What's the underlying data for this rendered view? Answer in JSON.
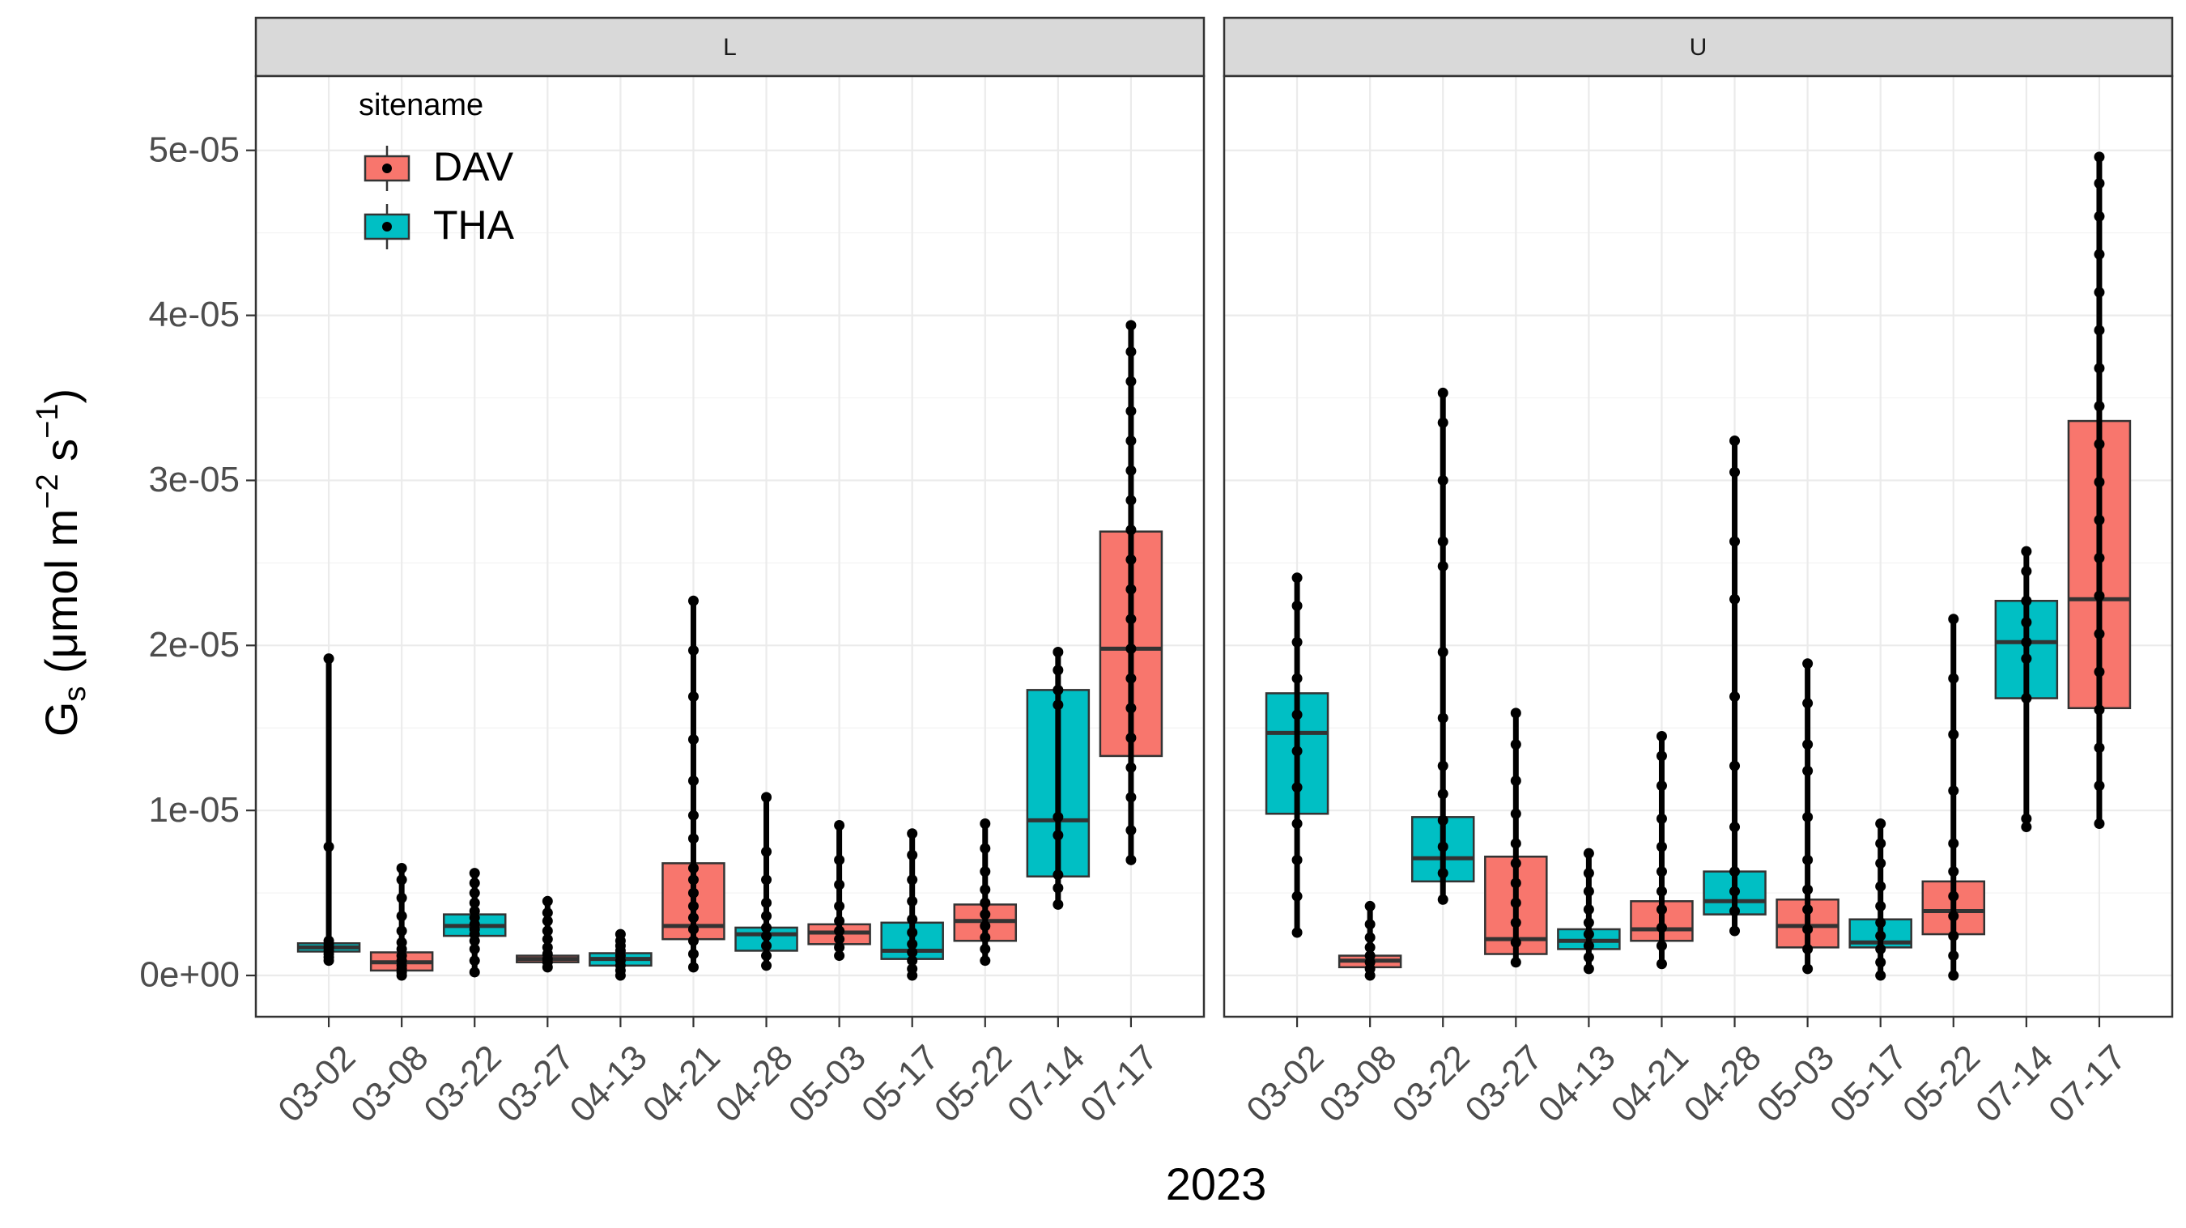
{
  "chart_data": {
    "type": "boxplot",
    "xlabel": "2023",
    "ylabel": "Gs (μmol m^-2 s^-1)",
    "ylabel_parts": {
      "main": "G",
      "sub": "s",
      "open": " (μmol m",
      "exp1": "−2",
      "mid": " s",
      "exp2": "−1",
      "close": ")"
    },
    "ylim": [
      -2.5e-06,
      5.45e-05
    ],
    "y_ticks": [
      0,
      1e-05,
      2e-05,
      3e-05,
      4e-05,
      5e-05
    ],
    "y_tick_labels": [
      "0e+00",
      "1e-05",
      "2e-05",
      "3e-05",
      "4e-05",
      "5e-05"
    ],
    "categories": [
      "03-02",
      "03-08",
      "03-22",
      "03-27",
      "04-13",
      "04-21",
      "04-28",
      "05-03",
      "05-17",
      "05-22",
      "07-14",
      "07-17"
    ],
    "legend": {
      "title": "sitename",
      "placement": "top-left inside",
      "entries": [
        {
          "name": "DAV",
          "color": "#F8766D"
        },
        {
          "name": "THA",
          "color": "#00BFC4"
        }
      ]
    },
    "panels": [
      {
        "facet": "L",
        "boxes": [
          {
            "date": "03-02",
            "site": "THA",
            "min": 9e-07,
            "q1": 1.45e-06,
            "median": 1.7e-06,
            "q3": 1.95e-06,
            "max": 1.92e-05,
            "points": [
              9e-07,
              1.1e-06,
              1.3e-06,
              1.5e-06,
              1.7e-06,
              1.9e-06,
              2.1e-06,
              7.8e-06,
              1.92e-05
            ]
          },
          {
            "date": "03-08",
            "site": "DAV",
            "min": 0.0,
            "q1": 3e-07,
            "median": 8e-07,
            "q3": 1.4e-06,
            "max": 6.5e-06,
            "points": [
              0.0,
              2e-07,
              4e-07,
              6e-07,
              9e-07,
              1.2e-06,
              1.6e-06,
              2e-06,
              2.7e-06,
              3.6e-06,
              4.7e-06,
              5.8e-06,
              6.5e-06
            ]
          },
          {
            "date": "03-22",
            "site": "THA",
            "min": 2e-07,
            "q1": 2.4e-06,
            "median": 3e-06,
            "q3": 3.7e-06,
            "max": 6.2e-06,
            "points": [
              2e-07,
              9e-07,
              1.6e-06,
              2.1e-06,
              2.5e-06,
              2.8e-06,
              3.1e-06,
              3.5e-06,
              3.9e-06,
              4.4e-06,
              5e-06,
              5.6e-06,
              6.2e-06
            ]
          },
          {
            "date": "03-27",
            "site": "DAV",
            "min": 5e-07,
            "q1": 8e-07,
            "median": 1e-06,
            "q3": 1.2e-06,
            "max": 4.5e-06,
            "points": [
              5e-07,
              8e-07,
              1e-06,
              1.3e-06,
              1.7e-06,
              2.2e-06,
              2.7e-06,
              3.3e-06,
              3.8e-06,
              4.5e-06
            ]
          },
          {
            "date": "04-13",
            "site": "THA",
            "min": 0.0,
            "q1": 6e-07,
            "median": 1e-06,
            "q3": 1.35e-06,
            "max": 2.5e-06,
            "points": [
              0.0,
              3e-07,
              6e-07,
              9e-07,
              1.2e-06,
              1.5e-06,
              1.8e-06,
              2.1e-06,
              2.5e-06
            ]
          },
          {
            "date": "04-21",
            "site": "DAV",
            "min": 5e-07,
            "q1": 2.2e-06,
            "median": 3e-06,
            "q3": 6.8e-06,
            "max": 2.27e-05,
            "points": [
              5e-07,
              1.3e-06,
              2.1e-06,
              2.8e-06,
              3.5e-06,
              4.2e-06,
              5e-06,
              5.8e-06,
              6.5e-06,
              8.3e-06,
              9.7e-06,
              1.18e-05,
              1.43e-05,
              1.69e-05,
              1.97e-05,
              2.27e-05
            ]
          },
          {
            "date": "04-28",
            "site": "THA",
            "min": 6e-07,
            "q1": 1.5e-06,
            "median": 2.5e-06,
            "q3": 2.9e-06,
            "max": 1.08e-05,
            "points": [
              6e-07,
              1.2e-06,
              1.8e-06,
              2.4e-06,
              2.9e-06,
              3.6e-06,
              4.4e-06,
              5.8e-06,
              7.5e-06,
              1.08e-05
            ]
          },
          {
            "date": "05-03",
            "site": "DAV",
            "min": 1.2e-06,
            "q1": 1.9e-06,
            "median": 2.6e-06,
            "q3": 3.1e-06,
            "max": 9.1e-06,
            "points": [
              1.2e-06,
              1.7e-06,
              2.2e-06,
              2.7e-06,
              3.3e-06,
              4.2e-06,
              5.5e-06,
              7e-06,
              9.1e-06
            ]
          },
          {
            "date": "05-17",
            "site": "THA",
            "min": 0.0,
            "q1": 1e-06,
            "median": 1.5e-06,
            "q3": 3.2e-06,
            "max": 8.6e-06,
            "points": [
              0.0,
              4e-07,
              9e-07,
              1.4e-06,
              1.9e-06,
              2.6e-06,
              3.4e-06,
              4.5e-06,
              5.8e-06,
              7.3e-06,
              8.6e-06
            ]
          },
          {
            "date": "05-22",
            "site": "DAV",
            "min": 9e-07,
            "q1": 2.1e-06,
            "median": 3.3e-06,
            "q3": 4.3e-06,
            "max": 9.2e-06,
            "points": [
              9e-07,
              1.6e-06,
              2.3e-06,
              3e-06,
              3.7e-06,
              4.4e-06,
              5.2e-06,
              6.3e-06,
              7.7e-06,
              9.2e-06
            ]
          },
          {
            "date": "07-14",
            "site": "THA",
            "min": 4.3e-06,
            "q1": 6e-06,
            "median": 9.4e-06,
            "q3": 1.73e-05,
            "max": 1.96e-05,
            "points": [
              4.3e-06,
              5.3e-06,
              6.1e-06,
              8.5e-06,
              9.6e-06,
              1.64e-05,
              1.73e-05,
              1.85e-05,
              1.96e-05
            ]
          },
          {
            "date": "07-17",
            "site": "DAV",
            "min": 7e-06,
            "q1": 1.33e-05,
            "median": 1.98e-05,
            "q3": 2.69e-05,
            "max": 3.94e-05,
            "points": [
              7e-06,
              8.8e-06,
              1.08e-05,
              1.26e-05,
              1.44e-05,
              1.62e-05,
              1.8e-05,
              1.98e-05,
              2.16e-05,
              2.34e-05,
              2.52e-05,
              2.7e-05,
              2.88e-05,
              3.06e-05,
              3.24e-05,
              3.42e-05,
              3.6e-05,
              3.78e-05,
              3.94e-05
            ]
          }
        ]
      },
      {
        "facet": "U",
        "boxes": [
          {
            "date": "03-02",
            "site": "THA",
            "min": 2.6e-06,
            "q1": 9.8e-06,
            "median": 1.47e-05,
            "q3": 1.71e-05,
            "max": 2.41e-05,
            "points": [
              2.6e-06,
              4.8e-06,
              7e-06,
              9.2e-06,
              1.14e-05,
              1.36e-05,
              1.58e-05,
              1.8e-05,
              2.02e-05,
              2.24e-05,
              2.41e-05
            ]
          },
          {
            "date": "03-08",
            "site": "DAV",
            "min": 0.0,
            "q1": 5e-07,
            "median": 9e-07,
            "q3": 1.2e-06,
            "max": 4.2e-06,
            "points": [
              0.0,
              4e-07,
              8e-07,
              1.2e-06,
              1.7e-06,
              2.3e-06,
              3.1e-06,
              4.2e-06
            ]
          },
          {
            "date": "03-22",
            "site": "THA",
            "min": 4.6e-06,
            "q1": 5.7e-06,
            "median": 7.1e-06,
            "q3": 9.6e-06,
            "max": 3.53e-05,
            "points": [
              4.6e-06,
              6.2e-06,
              7.8e-06,
              9.4e-06,
              1.1e-05,
              1.27e-05,
              1.56e-05,
              1.96e-05,
              2.48e-05,
              2.63e-05,
              3e-05,
              3.35e-05,
              3.53e-05
            ]
          },
          {
            "date": "03-27",
            "site": "DAV",
            "min": 8e-07,
            "q1": 1.3e-06,
            "median": 2.2e-06,
            "q3": 7.2e-06,
            "max": 1.59e-05,
            "points": [
              8e-07,
              2e-06,
              3.2e-06,
              4.4e-06,
              5.6e-06,
              6.8e-06,
              8e-06,
              9.8e-06,
              1.18e-05,
              1.4e-05,
              1.59e-05
            ]
          },
          {
            "date": "04-13",
            "site": "THA",
            "min": 4e-07,
            "q1": 1.6e-06,
            "median": 2.1e-06,
            "q3": 2.8e-06,
            "max": 7.4e-06,
            "points": [
              4e-07,
              1.1e-06,
              1.8e-06,
              2.5e-06,
              3.2e-06,
              4e-06,
              5.1e-06,
              6.2e-06,
              7.4e-06
            ]
          },
          {
            "date": "04-21",
            "site": "DAV",
            "min": 7e-07,
            "q1": 2.1e-06,
            "median": 2.8e-06,
            "q3": 4.5e-06,
            "max": 1.45e-05,
            "points": [
              7e-07,
              1.8e-06,
              2.9e-06,
              4e-06,
              5.1e-06,
              6.3e-06,
              7.8e-06,
              9.5e-06,
              1.15e-05,
              1.33e-05,
              1.45e-05
            ]
          },
          {
            "date": "04-28",
            "site": "THA",
            "min": 2.7e-06,
            "q1": 3.7e-06,
            "median": 4.5e-06,
            "q3": 6.3e-06,
            "max": 3.24e-05,
            "points": [
              2.7e-06,
              3.9e-06,
              5.1e-06,
              6.3e-06,
              9e-06,
              1.27e-05,
              1.69e-05,
              2.28e-05,
              2.63e-05,
              3.05e-05,
              3.24e-05
            ]
          },
          {
            "date": "05-03",
            "site": "DAV",
            "min": 4e-07,
            "q1": 1.7e-06,
            "median": 3e-06,
            "q3": 4.6e-06,
            "max": 1.89e-05,
            "points": [
              4e-07,
              1.6e-06,
              2.8e-06,
              4e-06,
              5.2e-06,
              7e-06,
              9.6e-06,
              1.24e-05,
              1.4e-05,
              1.65e-05,
              1.89e-05
            ]
          },
          {
            "date": "05-17",
            "site": "THA",
            "min": 0.0,
            "q1": 1.7e-06,
            "median": 2e-06,
            "q3": 3.4e-06,
            "max": 9.2e-06,
            "points": [
              0.0,
              8e-07,
              1.6e-06,
              2.4e-06,
              3.2e-06,
              4.2e-06,
              5.4e-06,
              6.8e-06,
              8e-06,
              9.2e-06
            ]
          },
          {
            "date": "05-22",
            "site": "DAV",
            "min": 0.0,
            "q1": 2.5e-06,
            "median": 3.9e-06,
            "q3": 5.7e-06,
            "max": 2.16e-05,
            "points": [
              0.0,
              1.2e-06,
              2.4e-06,
              3.6e-06,
              4.8e-06,
              6.3e-06,
              8e-06,
              1.12e-05,
              1.46e-05,
              1.8e-05,
              2.16e-05
            ]
          },
          {
            "date": "07-14",
            "site": "THA",
            "min": 9e-06,
            "q1": 1.68e-05,
            "median": 2.02e-05,
            "q3": 2.27e-05,
            "max": 2.57e-05,
            "points": [
              9e-06,
              9.5e-06,
              1.68e-05,
              1.92e-05,
              2.02e-05,
              2.14e-05,
              2.27e-05,
              2.45e-05,
              2.57e-05
            ]
          },
          {
            "date": "07-17",
            "site": "DAV",
            "min": 9.2e-06,
            "q1": 1.62e-05,
            "median": 2.28e-05,
            "q3": 3.36e-05,
            "max": 4.96e-05,
            "points": [
              9.2e-06,
              1.15e-05,
              1.38e-05,
              1.61e-05,
              1.84e-05,
              2.07e-05,
              2.3e-05,
              2.53e-05,
              2.76e-05,
              2.99e-05,
              3.22e-05,
              3.45e-05,
              3.68e-05,
              3.91e-05,
              4.14e-05,
              4.37e-05,
              4.6e-05,
              4.8e-05,
              4.96e-05
            ]
          }
        ]
      }
    ]
  }
}
